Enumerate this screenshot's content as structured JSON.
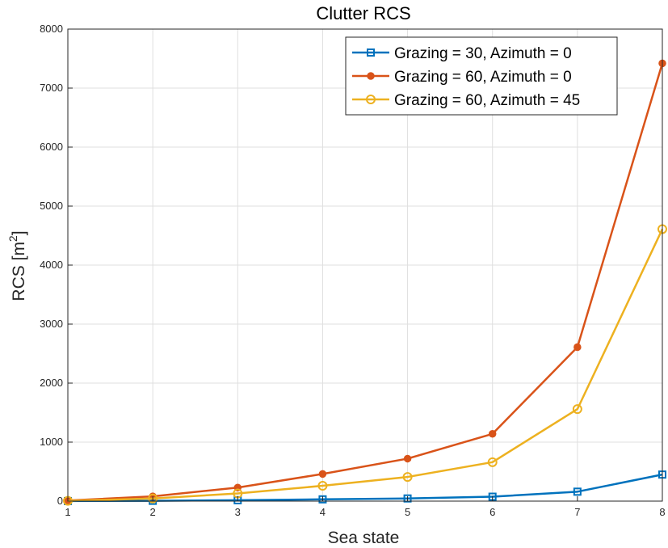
{
  "chart_data": {
    "type": "line",
    "title": "Clutter RCS",
    "xlabel": "Sea state",
    "ylabel_base": "RCS [m",
    "ylabel_sup": "2",
    "ylabel_end": "]",
    "xlim": [
      1,
      8
    ],
    "ylim": [
      0,
      8000
    ],
    "x": [
      1,
      2,
      3,
      4,
      5,
      6,
      7,
      8
    ],
    "xticks": [
      "1",
      "2",
      "3",
      "4",
      "5",
      "6",
      "7",
      "8"
    ],
    "yticks": [
      "0",
      "1000",
      "2000",
      "3000",
      "4000",
      "5000",
      "6000",
      "7000",
      "8000"
    ],
    "grid": true,
    "legend_position": "top-right",
    "series": [
      {
        "name": "Grazing = 30, Azimuth = 0",
        "color": "#0072BD",
        "marker": "square",
        "values": [
          1,
          5,
          15,
          30,
          45,
          75,
          160,
          450
        ]
      },
      {
        "name": "Grazing = 60, Azimuth = 0",
        "color": "#D95319",
        "marker": "filled-circle",
        "values": [
          10,
          80,
          230,
          460,
          720,
          1140,
          2610,
          7420
        ]
      },
      {
        "name": "Grazing = 60, Azimuth = 45",
        "color": "#EDB120",
        "marker": "open-circle",
        "values": [
          5,
          45,
          130,
          260,
          410,
          660,
          1560,
          4610
        ]
      }
    ]
  }
}
